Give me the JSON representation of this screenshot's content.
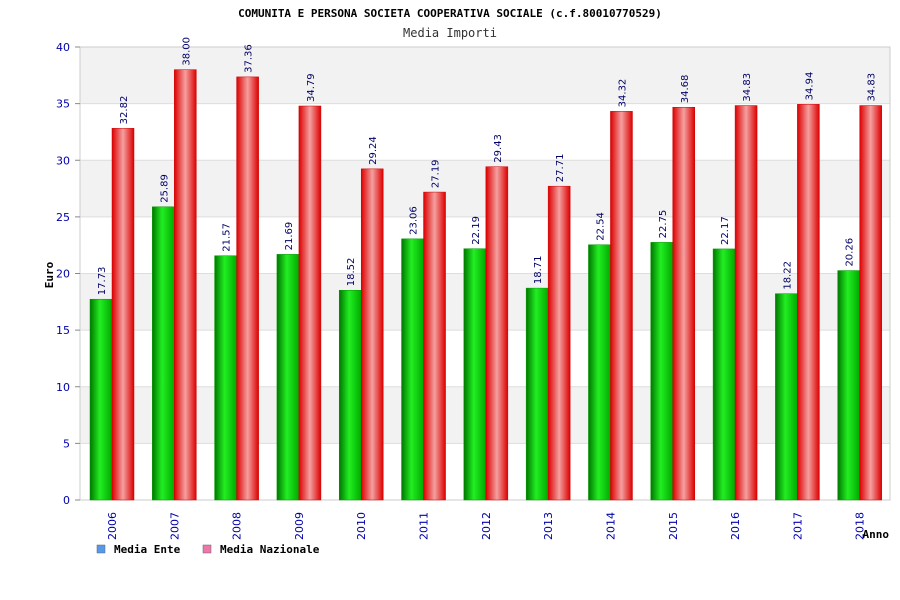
{
  "chart_data": {
    "type": "bar",
    "title": "COMUNITA E PERSONA SOCIETA COOPERATIVA SOCIALE (c.f.80010770529)",
    "subtitle": "Media Importi",
    "xlabel": "Anno",
    "ylabel": "Euro",
    "ylim": [
      0,
      40
    ],
    "yticks": [
      0,
      5,
      10,
      15,
      20,
      25,
      30,
      35,
      40
    ],
    "categories": [
      "2006",
      "2007",
      "2008",
      "2009",
      "2010",
      "2011",
      "2012",
      "2013",
      "2014",
      "2015",
      "2016",
      "2017",
      "2018"
    ],
    "series": [
      {
        "name": "Media Ente",
        "color": "#00cc00",
        "values": [
          17.73,
          25.89,
          21.57,
          21.69,
          18.52,
          23.06,
          22.19,
          18.71,
          22.54,
          22.75,
          22.17,
          18.22,
          20.26
        ],
        "labels": [
          "17.73",
          "25.89",
          "21.57",
          "21.69",
          "18.52",
          "23.06",
          "22.19",
          "18.71",
          "22.54",
          "22.75",
          "22.17",
          "18.22",
          "20.26"
        ]
      },
      {
        "name": "Media Nazionale",
        "color": "#ee0000",
        "values": [
          32.82,
          38.0,
          37.36,
          34.79,
          29.24,
          27.19,
          29.43,
          27.71,
          34.32,
          34.68,
          34.83,
          34.94,
          34.83
        ],
        "labels": [
          "32.82",
          "38.00",
          "37.36",
          "34.79",
          "29.24",
          "27.19",
          "29.43",
          "27.71",
          "34.32",
          "34.68",
          "34.83",
          "34.94",
          "34.83"
        ]
      }
    ],
    "legend": [
      {
        "label": "Media Ente",
        "color": "#5599ee"
      },
      {
        "label": "Media Nazionale",
        "color": "#ee77aa"
      }
    ],
    "legend_position": "bottom-left",
    "grid": true
  }
}
